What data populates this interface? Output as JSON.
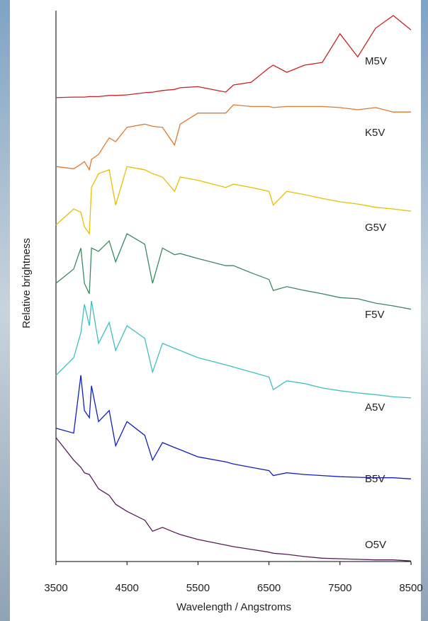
{
  "chart_data": {
    "type": "line",
    "xlabel": "Wavelength / Angstroms",
    "ylabel": "Relative brightness",
    "xlim": [
      3500,
      8500
    ],
    "xticks": [
      3500,
      4500,
      5500,
      6500,
      7500,
      8500
    ],
    "ylim": [
      0,
      100
    ],
    "x": [
      3500,
      3750,
      3850,
      3900,
      3970,
      4000,
      4100,
      4250,
      4340,
      4500,
      4750,
      4860,
      5000,
      5170,
      5250,
      5500,
      5890,
      6000,
      6250,
      6500,
      6560,
      6750,
      7000,
      7250,
      7500,
      7750,
      8000,
      8250,
      8500
    ],
    "series": [
      {
        "name": "M5V",
        "color": "#cc2222",
        "values": [
          84.2,
          84.3,
          84.3,
          84.3,
          84.4,
          84.4,
          84.4,
          84.6,
          84.6,
          84.7,
          85.1,
          85.2,
          85.5,
          85.7,
          86.0,
          86.2,
          85.2,
          86.5,
          87.0,
          89.6,
          90.1,
          88.8,
          90.1,
          90.6,
          95.8,
          91.6,
          96.8,
          99.1,
          96.5
        ]
      },
      {
        "name": "K5V",
        "color": "#e07830",
        "values": [
          71.7,
          71.3,
          72.1,
          72.6,
          71.1,
          73.0,
          73.9,
          76.9,
          76.2,
          78.8,
          79.4,
          79.0,
          78.8,
          75.6,
          79.4,
          81.4,
          81.4,
          82.9,
          82.6,
          82.6,
          82.4,
          82.6,
          82.6,
          82.6,
          82.4,
          82.0,
          82.4,
          81.6,
          81.6
        ]
      },
      {
        "name": "G5V",
        "color": "#e8c000",
        "values": [
          61.1,
          64.0,
          63.4,
          60.8,
          59.5,
          67.9,
          70.4,
          71.1,
          64.7,
          71.7,
          71.1,
          70.4,
          69.8,
          67.2,
          69.8,
          69.2,
          67.9,
          68.5,
          67.9,
          67.2,
          64.7,
          67.2,
          66.6,
          65.9,
          65.3,
          64.9,
          64.3,
          64.0,
          63.6
        ]
      },
      {
        "name": "F5V",
        "color": "#3a8a60",
        "values": [
          50.5,
          53.1,
          56.9,
          50.5,
          48.6,
          56.9,
          56.3,
          58.2,
          54.4,
          59.5,
          57.6,
          50.5,
          56.9,
          55.7,
          55.9,
          55.0,
          53.7,
          53.7,
          52.4,
          51.2,
          49.2,
          49.9,
          49.2,
          48.6,
          47.9,
          47.7,
          46.9,
          46.4,
          45.8
        ]
      },
      {
        "name": "A5V",
        "color": "#40c0c0",
        "values": [
          33.8,
          37.0,
          41.5,
          46.7,
          42.8,
          47.3,
          39.6,
          43.4,
          38.3,
          42.8,
          40.5,
          34.4,
          39.6,
          38.7,
          38.3,
          37.0,
          35.7,
          35.3,
          34.4,
          33.5,
          31.2,
          32.8,
          32.3,
          31.5,
          31.0,
          30.6,
          30.3,
          29.9,
          29.7
        ]
      },
      {
        "name": "B5V",
        "color": "#1020c0",
        "values": [
          24.2,
          23.3,
          33.8,
          27.4,
          26.1,
          31.9,
          25.4,
          27.4,
          21.0,
          25.4,
          22.9,
          18.4,
          21.6,
          20.7,
          20.3,
          19.0,
          18.1,
          17.7,
          17.1,
          16.5,
          15.6,
          16.1,
          15.8,
          15.6,
          15.4,
          15.3,
          15.2,
          15.2,
          15.0
        ]
      },
      {
        "name": "O5V",
        "color": "#5a1a5a",
        "values": [
          22.5,
          18.4,
          17.1,
          16.1,
          15.8,
          15.2,
          13.2,
          12.0,
          10.4,
          9.1,
          7.5,
          5.5,
          6.2,
          5.3,
          4.9,
          4.0,
          3.0,
          2.7,
          2.2,
          1.7,
          1.5,
          1.3,
          0.9,
          0.6,
          0.5,
          0.4,
          0.3,
          0.3,
          0.1
        ]
      }
    ]
  }
}
